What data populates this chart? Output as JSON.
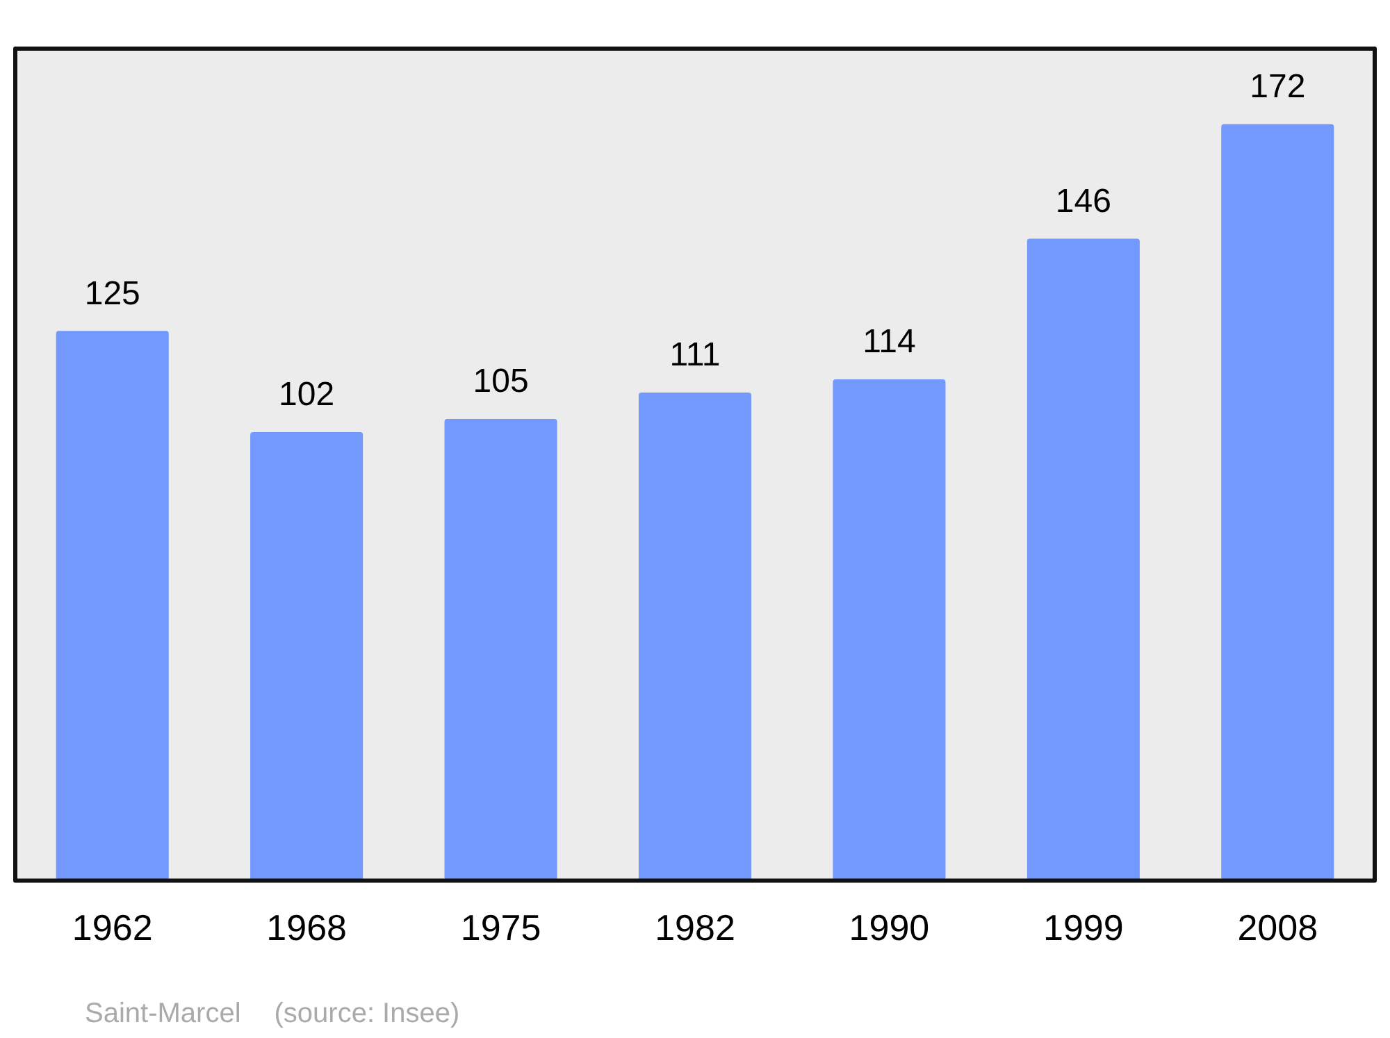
{
  "chart_data": {
    "type": "bar",
    "categories": [
      "1962",
      "1968",
      "1975",
      "1982",
      "1990",
      "1999",
      "2008"
    ],
    "values": [
      125,
      102,
      105,
      111,
      114,
      146,
      172
    ],
    "color": "#7399ff",
    "data_labels": true,
    "tick_labels": "x",
    "legend": false,
    "annotations": [
      "Saint-Marcel",
      "(source: Insee)"
    ]
  }
}
